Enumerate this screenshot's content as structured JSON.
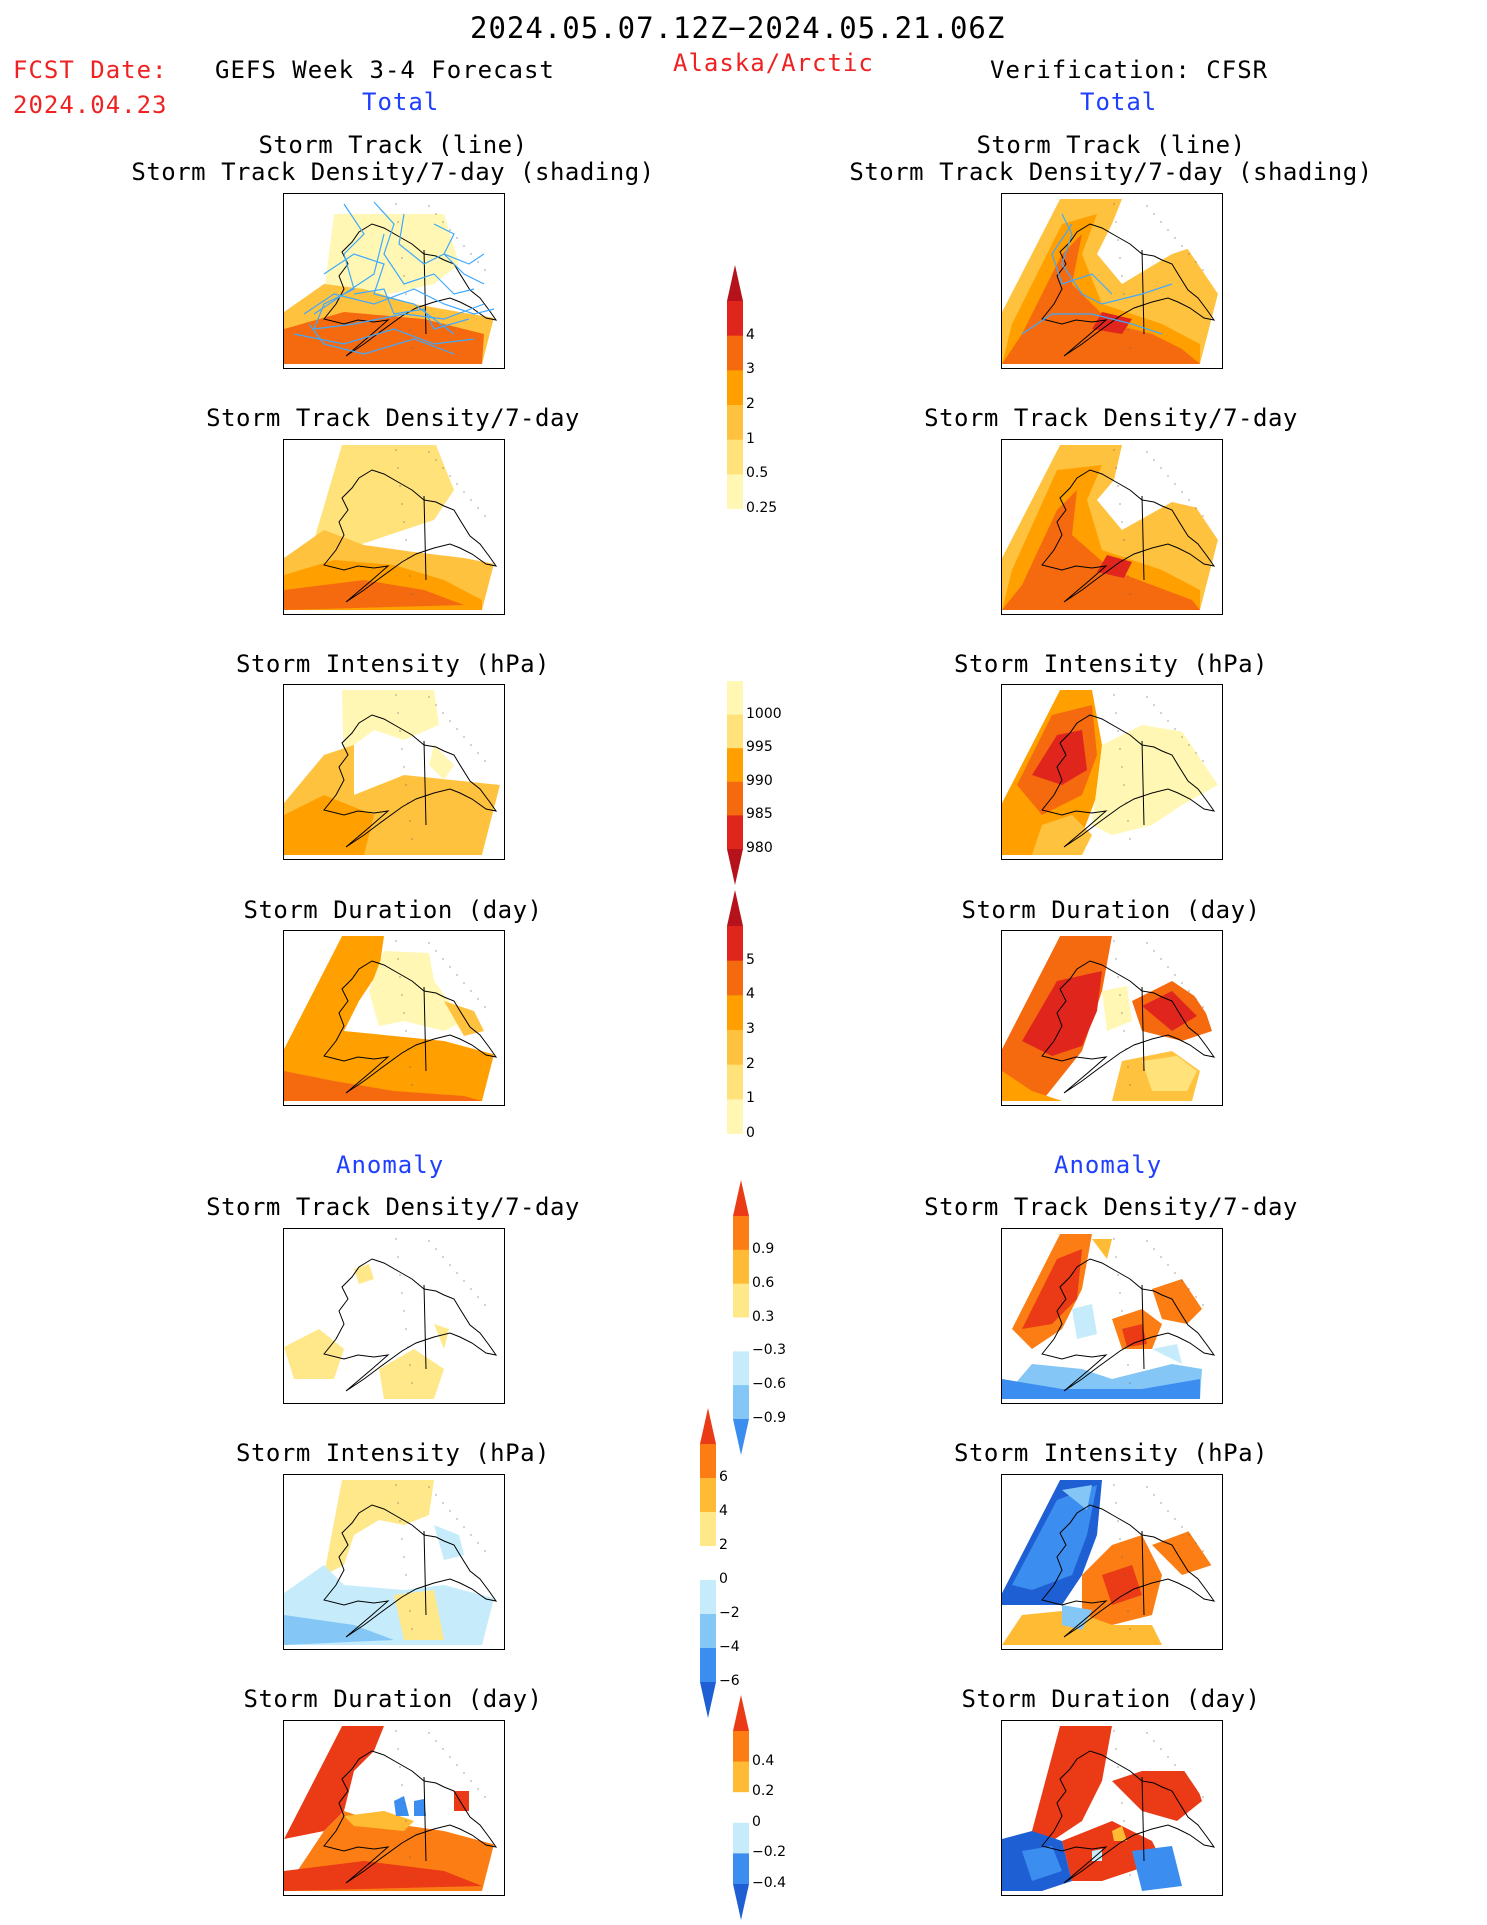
{
  "header": {
    "date_range": "2024.05.07.12Z−2024.05.21.06Z",
    "fcst_label": "FCST Date:",
    "fcst_date": "2024.04.23",
    "model_title": "GEFS Week 3-4 Forecast",
    "region": "Alaska/Arctic",
    "verification": "Verification: CFSR",
    "left_total": "Total",
    "right_total": "Total",
    "left_anomaly": "Anomaly",
    "right_anomaly": "Anomaly"
  },
  "panel_titles": {
    "track": "Storm Track (line)\nStorm Track Density/7-day (shading)",
    "density": "Storm Track Density/7-day",
    "intensity": "Storm Intensity (hPa)",
    "duration": "Storm Duration (day)"
  },
  "palettes": {
    "warm": [
      "#fff7b3",
      "#ffe27a",
      "#ffc23f",
      "#ffa000",
      "#f56a0f",
      "#e0261c",
      "#b5121b"
    ],
    "anom": [
      "#1f5fd4",
      "#3b8ef0",
      "#84c6f5",
      "#c6ecfb",
      "#ffffff",
      "#ffe88a",
      "#ffbb33",
      "#fb7d13",
      "#ea3a16"
    ]
  },
  "colorbars": [
    {
      "id": "density-total",
      "labels": [
        "4",
        "3",
        "2",
        "1",
        "0.5",
        "0.25"
      ]
    },
    {
      "id": "intensity-total",
      "labels": [
        "1000",
        "995",
        "990",
        "985",
        "980"
      ]
    },
    {
      "id": "duration-total",
      "labels": [
        "5",
        "4",
        "3",
        "2",
        "1",
        "0"
      ]
    },
    {
      "id": "density-anom",
      "labels": [
        "0.9",
        "0.6",
        "0.3",
        "−0.3",
        "−0.6",
        "−0.9"
      ]
    },
    {
      "id": "intensity-anom",
      "labels": [
        "6",
        "4",
        "2",
        "0",
        "−2",
        "−4",
        "−6"
      ]
    },
    {
      "id": "duration-anom",
      "labels": [
        "0.4",
        "0.2",
        "0",
        "−0.2",
        "−0.4"
      ]
    }
  ]
}
